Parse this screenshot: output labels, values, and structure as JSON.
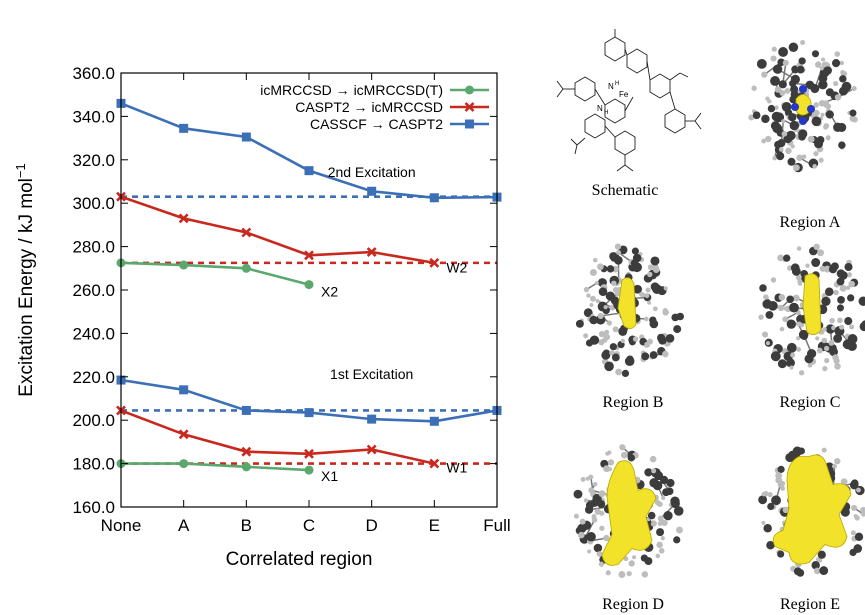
{
  "chart_data": {
    "type": "line",
    "ylabel": "Excitation Energy / kJ mol",
    "ylabel_sup": "−1",
    "xlabel": "Correlated region",
    "categories": [
      "None",
      "A",
      "B",
      "C",
      "D",
      "E",
      "Full"
    ],
    "ylim": [
      160,
      360
    ],
    "yticks": [
      "160.0",
      "180.0",
      "200.0",
      "220.0",
      "240.0",
      "260.0",
      "280.0",
      "300.0",
      "320.0",
      "340.0",
      "360.0"
    ],
    "grid": false,
    "legend_position": "top-right",
    "legend": [
      {
        "label": "icMRCCSD → icMRCCSD(T)",
        "color": "#5aa86e",
        "marker": "circle"
      },
      {
        "label": "CASPT2 → icMRCCSD",
        "color": "#c8281e",
        "marker": "x"
      },
      {
        "label": "CASSCF → CASPT2",
        "color": "#3b6fb6",
        "marker": "square"
      }
    ],
    "series": [
      {
        "group": "2nd",
        "method": "CASSCF → CASPT2",
        "color": "#3b6fb6",
        "marker": "square",
        "values": [
          346.0,
          334.5,
          330.5,
          315.0,
          305.5,
          302.5,
          302.8
        ]
      },
      {
        "group": "2nd",
        "method": "CASPT2 → icMRCCSD",
        "color": "#c8281e",
        "marker": "x",
        "values": [
          303.0,
          293.0,
          286.5,
          276.0,
          277.5,
          272.5,
          null
        ]
      },
      {
        "group": "2nd",
        "method": "icMRCCSD → icMRCCSD(T)",
        "color": "#5aa86e",
        "marker": "circle",
        "values": [
          272.5,
          271.5,
          270.0,
          262.5,
          null,
          null,
          null
        ]
      },
      {
        "group": "1st",
        "method": "CASSCF → CASPT2",
        "color": "#3b6fb6",
        "marker": "square",
        "values": [
          218.5,
          214.0,
          204.5,
          203.5,
          200.5,
          199.5,
          204.5
        ]
      },
      {
        "group": "1st",
        "method": "CASPT2 → icMRCCSD",
        "color": "#c8281e",
        "marker": "x",
        "values": [
          204.5,
          193.5,
          185.5,
          184.5,
          186.5,
          180.0,
          null
        ]
      },
      {
        "group": "1st",
        "method": "icMRCCSD → icMRCCSD(T)",
        "color": "#5aa86e",
        "marker": "circle",
        "values": [
          180.0,
          180.0,
          178.5,
          177.0,
          null,
          null,
          null
        ]
      }
    ],
    "reference_lines": [
      {
        "value": 303.0,
        "color": "#3b6fb6"
      },
      {
        "value": 272.5,
        "color": "#c8281e"
      },
      {
        "value": 204.5,
        "color": "#3b6fb6"
      },
      {
        "value": 180.0,
        "color": "#c8281e"
      }
    ],
    "annotations": [
      {
        "text": "2nd Excitation",
        "x": "D",
        "y": 312
      },
      {
        "text": "1st Excitation",
        "x": "D",
        "y": 219
      },
      {
        "text": "W2",
        "x": "E",
        "y": 268
      },
      {
        "text": "W1",
        "x": "E",
        "y": 176
      },
      {
        "text": "X2",
        "x": "C",
        "y": 257
      },
      {
        "text": "X1",
        "x": "C",
        "y": 172
      }
    ]
  },
  "figure_panels": [
    {
      "id": "schematic",
      "caption": "Schematic",
      "structure_labels": [
        "Fe",
        "N",
        "H",
        "N",
        "H"
      ]
    },
    {
      "id": "region-a",
      "caption": "Region A"
    },
    {
      "id": "region-b",
      "caption": "Region B"
    },
    {
      "id": "region-c",
      "caption": "Region C"
    },
    {
      "id": "region-d",
      "caption": "Region D"
    },
    {
      "id": "region-e",
      "caption": "Region E"
    }
  ]
}
